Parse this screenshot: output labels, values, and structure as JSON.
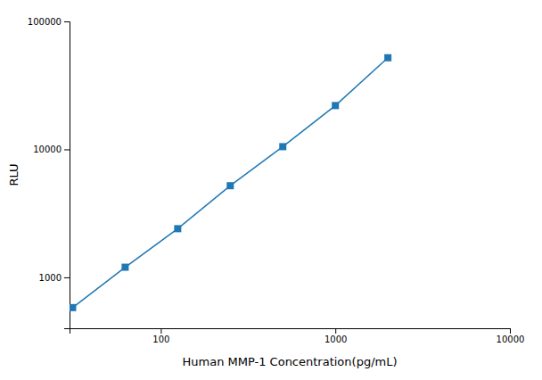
{
  "chart_data": {
    "type": "line",
    "x": [
      31.25,
      62.5,
      125,
      250,
      500,
      1000,
      2000
    ],
    "values": [
      580,
      1200,
      2400,
      5200,
      10500,
      22000,
      52000
    ],
    "xlabel": "Human MMP-1 Concentration(pg/mL)",
    "ylabel": "RLU",
    "xlim": [
      30,
      10000
    ],
    "ylim": [
      400,
      100000
    ],
    "xticks": [
      100,
      1000,
      10000
    ],
    "yticks": [
      1000,
      10000,
      100000
    ],
    "log": true,
    "marker": "square"
  }
}
